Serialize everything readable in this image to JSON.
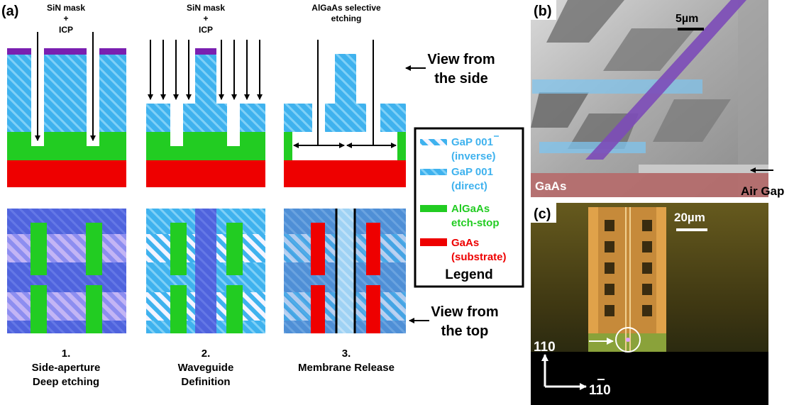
{
  "panel_labels": {
    "a": "(a)",
    "b": "(b)",
    "c": "(c)"
  },
  "process_headers": {
    "step1": [
      "SiN mask",
      "+",
      "ICP"
    ],
    "step2": [
      "SiN mask",
      "+",
      "ICP"
    ],
    "step3": [
      "AlGaAs selective",
      "etching"
    ]
  },
  "view_side": [
    "View from",
    "the side"
  ],
  "view_top": [
    "View from",
    "the top"
  ],
  "steps": [
    {
      "number": "1.",
      "line1": "Side-aperture",
      "line2": "Deep etching"
    },
    {
      "number": "2.",
      "line1": "Waveguide",
      "line2": "Definition"
    },
    {
      "number": "3.",
      "line1": "Membrane Release",
      "line2": ""
    }
  ],
  "legend": {
    "title": "Legend",
    "items": [
      {
        "line1": "GaP 001",
        "line2": "(inverse)",
        "color": "#3fb2ee"
      },
      {
        "line1": "GaP 001",
        "line2": "(direct)",
        "color": "#3fb2ee"
      },
      {
        "line1": "AlGaAs",
        "line2": "etch-stop",
        "color": "#22cc22"
      },
      {
        "line1": "GaAs",
        "line2": "(substrate)",
        "color": "#ee0000"
      }
    ]
  },
  "sem": {
    "scale": "5µm",
    "substrate": "GaAs",
    "annotation": "Air Gap"
  },
  "optical": {
    "scale": "20µm",
    "axis_y": "110",
    "axis_x": "110"
  },
  "colors": {
    "gap": "#3fb2ee",
    "gap_dark": "#5a6fe0",
    "algaas": "#22cc22",
    "gaas": "#ee0000",
    "sin": "#7a1fb0"
  }
}
